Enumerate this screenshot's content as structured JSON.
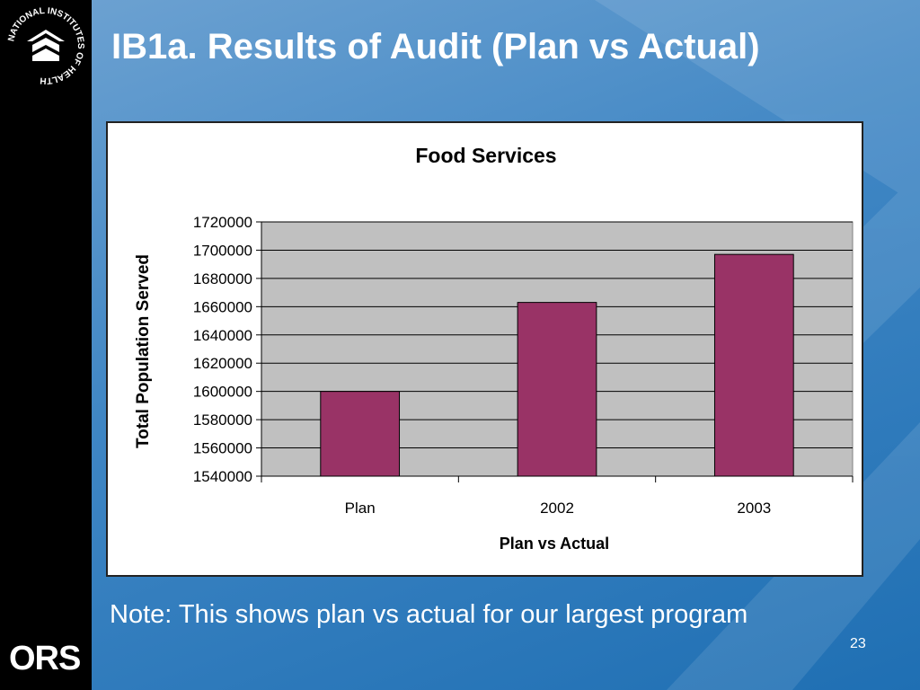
{
  "slide": {
    "title": "IB1a. Results of Audit (Plan vs Actual)",
    "note": "Note: This shows plan vs actual for our largest program",
    "page_number": "23",
    "logos": {
      "nih_text": "NATIONAL INSTITUTES OF HEALTH",
      "ors_text": "ORS"
    }
  },
  "colors": {
    "background": "#3f86c4",
    "bar": "#993366",
    "plot_area": "#c0c0c0",
    "side_bar": "#000000"
  },
  "chart_data": {
    "type": "bar",
    "title": "Food Services",
    "xlabel": "Plan vs Actual",
    "ylabel": "Total Population Served",
    "categories": [
      "Plan",
      "2002",
      "2003"
    ],
    "values": [
      1600000,
      1663000,
      1697000
    ],
    "ylim": [
      1540000,
      1720000
    ],
    "yticks": [
      1540000,
      1560000,
      1580000,
      1600000,
      1620000,
      1640000,
      1660000,
      1680000,
      1700000,
      1720000
    ],
    "grid": true,
    "legend": "none"
  }
}
